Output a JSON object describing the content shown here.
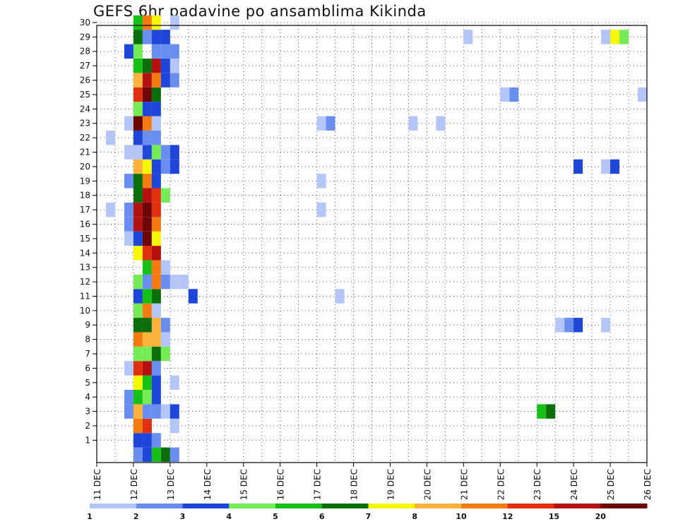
{
  "chart_data": {
    "type": "heatmap",
    "title": "GEFS 6hr padavine po ansamblima Kikinda",
    "xlabel": "",
    "ylabel": "",
    "x_ticks": [
      "11 DEC",
      "12 DEC",
      "13 DEC",
      "14 DEC",
      "15 DEC",
      "16 DEC",
      "17 DEC",
      "18 DEC",
      "19 DEC",
      "20 DEC",
      "21 DEC",
      "22 DEC",
      "23 DEC",
      "24 DEC",
      "25 DEC",
      "26 DEC"
    ],
    "y_ticks": [
      "1",
      "2",
      "3",
      "4",
      "5",
      "6",
      "7",
      "8",
      "9",
      "10",
      "11",
      "12",
      "13",
      "14",
      "15",
      "16",
      "17",
      "18",
      "19",
      "20",
      "21",
      "22",
      "23",
      "24",
      "25",
      "26",
      "27",
      "28",
      "29",
      "30"
    ],
    "xlim_days": [
      11,
      26
    ],
    "ylim_members": [
      0,
      30
    ],
    "step_hours": 6,
    "grid": true,
    "colorbar": {
      "labels": [
        "1",
        "2",
        "3",
        "4",
        "5",
        "6",
        "7",
        "8",
        "10",
        "12",
        "15",
        "20"
      ],
      "colors": [
        "#b3c6f7",
        "#6a8eef",
        "#1e46d8",
        "#75ec55",
        "#17c017",
        "#0a6e0a",
        "#f6f60a",
        "#fbb23c",
        "#f47a12",
        "#e03010",
        "#b41010",
        "#6e0606"
      ]
    },
    "legend_position": "bottom",
    "cells": [
      [
        0,
        12.0,
        2
      ],
      [
        0,
        12.25,
        3
      ],
      [
        0,
        12.5,
        5
      ],
      [
        0,
        12.75,
        6
      ],
      [
        0,
        13.0,
        2
      ],
      [
        1,
        12.0,
        3
      ],
      [
        1,
        12.25,
        3
      ],
      [
        1,
        12.5,
        2
      ],
      [
        2,
        12.0,
        9
      ],
      [
        2,
        12.25,
        10
      ],
      [
        2,
        13.0,
        1
      ],
      [
        3,
        11.75,
        2
      ],
      [
        3,
        12.0,
        8
      ],
      [
        3,
        12.25,
        2
      ],
      [
        3,
        12.5,
        2
      ],
      [
        3,
        12.75,
        1
      ],
      [
        3,
        13.0,
        3
      ],
      [
        3,
        23.0,
        5
      ],
      [
        3,
        23.25,
        6
      ],
      [
        4,
        11.75,
        2
      ],
      [
        4,
        12.0,
        5
      ],
      [
        4,
        12.25,
        4
      ],
      [
        4,
        12.5,
        3
      ],
      [
        5,
        12.0,
        7
      ],
      [
        5,
        12.25,
        5
      ],
      [
        5,
        12.5,
        3
      ],
      [
        5,
        13.0,
        1
      ],
      [
        6,
        11.75,
        1
      ],
      [
        6,
        12.0,
        10
      ],
      [
        6,
        12.25,
        11
      ],
      [
        6,
        12.5,
        2
      ],
      [
        7,
        12.0,
        4
      ],
      [
        7,
        12.25,
        4
      ],
      [
        7,
        12.5,
        6
      ],
      [
        7,
        12.75,
        4
      ],
      [
        8,
        12.0,
        9
      ],
      [
        8,
        12.25,
        8
      ],
      [
        8,
        12.5,
        8
      ],
      [
        8,
        12.75,
        1
      ],
      [
        9,
        12.0,
        6
      ],
      [
        9,
        12.25,
        6
      ],
      [
        9,
        12.5,
        8
      ],
      [
        9,
        12.75,
        2
      ],
      [
        9,
        23.5,
        1
      ],
      [
        9,
        23.75,
        2
      ],
      [
        9,
        24.0,
        3
      ],
      [
        9,
        24.75,
        1
      ],
      [
        10,
        12.0,
        4
      ],
      [
        10,
        12.25,
        9
      ],
      [
        10,
        12.5,
        1
      ],
      [
        11,
        12.0,
        3
      ],
      [
        11,
        12.25,
        5
      ],
      [
        11,
        12.5,
        6
      ],
      [
        11,
        13.5,
        3
      ],
      [
        11,
        17.5,
        1
      ],
      [
        12,
        12.0,
        4
      ],
      [
        12,
        12.25,
        2
      ],
      [
        12,
        12.5,
        9
      ],
      [
        12,
        12.75,
        2
      ],
      [
        12,
        13.0,
        1
      ],
      [
        12,
        13.25,
        1
      ],
      [
        13,
        12.25,
        5
      ],
      [
        13,
        12.5,
        9
      ],
      [
        13,
        12.75,
        1
      ],
      [
        14,
        12.0,
        7
      ],
      [
        14,
        12.25,
        10
      ],
      [
        14,
        12.5,
        11
      ],
      [
        15,
        11.75,
        1
      ],
      [
        15,
        12.0,
        3
      ],
      [
        15,
        12.25,
        12
      ],
      [
        15,
        12.5,
        7
      ],
      [
        16,
        11.75,
        2
      ],
      [
        16,
        12.0,
        11
      ],
      [
        16,
        12.25,
        12
      ],
      [
        16,
        12.5,
        9
      ],
      [
        17,
        11.25,
        1
      ],
      [
        17,
        11.75,
        2
      ],
      [
        17,
        12.0,
        11
      ],
      [
        17,
        12.25,
        12
      ],
      [
        17,
        12.5,
        10
      ],
      [
        17,
        17.0,
        1
      ],
      [
        18,
        12.0,
        6
      ],
      [
        18,
        12.25,
        11
      ],
      [
        18,
        12.5,
        10
      ],
      [
        18,
        12.75,
        4
      ],
      [
        19,
        11.75,
        2
      ],
      [
        19,
        12.0,
        6
      ],
      [
        19,
        12.25,
        9
      ],
      [
        19,
        12.5,
        3
      ],
      [
        19,
        17.0,
        1
      ],
      [
        20,
        12.0,
        8
      ],
      [
        20,
        12.25,
        7
      ],
      [
        20,
        12.5,
        3
      ],
      [
        20,
        12.75,
        2
      ],
      [
        20,
        13.0,
        3
      ],
      [
        20,
        24.0,
        3
      ],
      [
        20,
        24.75,
        1
      ],
      [
        20,
        25.0,
        3
      ],
      [
        21,
        11.75,
        1
      ],
      [
        21,
        12.0,
        1
      ],
      [
        21,
        12.25,
        3
      ],
      [
        21,
        12.5,
        4
      ],
      [
        21,
        12.75,
        2
      ],
      [
        21,
        13.0,
        3
      ],
      [
        22,
        11.25,
        1
      ],
      [
        22,
        12.0,
        3
      ],
      [
        22,
        12.25,
        2
      ],
      [
        22,
        12.5,
        2
      ],
      [
        23,
        11.75,
        1
      ],
      [
        23,
        12.0,
        12
      ],
      [
        23,
        12.25,
        9
      ],
      [
        23,
        12.5,
        1
      ],
      [
        23,
        17.0,
        1
      ],
      [
        23,
        17.25,
        2
      ],
      [
        23,
        19.5,
        1
      ],
      [
        23,
        20.25,
        1
      ],
      [
        24,
        12.0,
        4
      ],
      [
        24,
        12.25,
        3
      ],
      [
        24,
        12.5,
        3
      ],
      [
        25,
        12.0,
        10
      ],
      [
        25,
        12.25,
        12
      ],
      [
        25,
        12.5,
        6
      ],
      [
        25,
        22.0,
        1
      ],
      [
        25,
        22.25,
        2
      ],
      [
        25,
        25.75,
        1
      ],
      [
        26,
        12.0,
        8
      ],
      [
        26,
        12.25,
        11
      ],
      [
        26,
        12.5,
        9
      ],
      [
        26,
        12.75,
        3
      ],
      [
        26,
        13.0,
        2
      ],
      [
        27,
        12.0,
        5
      ],
      [
        27,
        12.25,
        6
      ],
      [
        27,
        12.5,
        11
      ],
      [
        27,
        12.75,
        3
      ],
      [
        27,
        13.0,
        1
      ],
      [
        28,
        11.75,
        3
      ],
      [
        28,
        12.0,
        4
      ],
      [
        28,
        12.5,
        2
      ],
      [
        28,
        12.75,
        2
      ],
      [
        28,
        13.0,
        2
      ],
      [
        29,
        12.0,
        6
      ],
      [
        29,
        12.25,
        2
      ],
      [
        29,
        12.5,
        3
      ],
      [
        29,
        12.75,
        3
      ],
      [
        29,
        21.0,
        1
      ],
      [
        29,
        24.75,
        1
      ],
      [
        29,
        25.0,
        7
      ],
      [
        29,
        25.25,
        4
      ],
      [
        30,
        12.0,
        5
      ],
      [
        30,
        12.25,
        9
      ],
      [
        30,
        12.5,
        7
      ],
      [
        30,
        13.0,
        1
      ]
    ]
  }
}
